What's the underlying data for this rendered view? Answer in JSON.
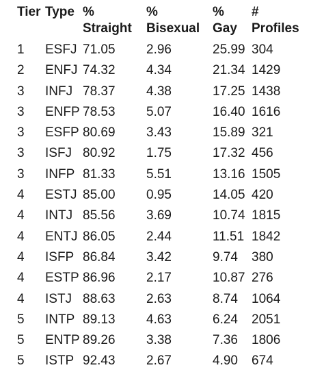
{
  "header": {
    "tier": "Tier",
    "type": "Type",
    "straight_line1": "%",
    "straight_line2": "Straight",
    "bisexual_line1": "%",
    "bisexual_line2": "Bisexual",
    "gay_line1": "%",
    "gay_line2": "Gay",
    "profiles_line1": "#",
    "profiles_line2": "Profiles"
  },
  "rows": [
    {
      "tier": "1",
      "type": "ESFJ",
      "straight": "71.05",
      "bisexual": "2.96",
      "gay": "25.99",
      "profiles": "304"
    },
    {
      "tier": "2",
      "type": "ENFJ",
      "straight": "74.32",
      "bisexual": "4.34",
      "gay": "21.34",
      "profiles": "1429"
    },
    {
      "tier": "3",
      "type": "INFJ",
      "straight": "78.37",
      "bisexual": "4.38",
      "gay": "17.25",
      "profiles": "1438"
    },
    {
      "tier": "3",
      "type": "ENFP",
      "straight": "78.53",
      "bisexual": "5.07",
      "gay": "16.40",
      "profiles": "1616"
    },
    {
      "tier": "3",
      "type": "ESFP",
      "straight": "80.69",
      "bisexual": "3.43",
      "gay": "15.89",
      "profiles": "321"
    },
    {
      "tier": "3",
      "type": "ISFJ",
      "straight": "80.92",
      "bisexual": "1.75",
      "gay": "17.32",
      "profiles": "456"
    },
    {
      "tier": "3",
      "type": "INFP",
      "straight": "81.33",
      "bisexual": "5.51",
      "gay": "13.16",
      "profiles": "1505"
    },
    {
      "tier": "4",
      "type": "ESTJ",
      "straight": "85.00",
      "bisexual": "0.95",
      "gay": "14.05",
      "profiles": "420"
    },
    {
      "tier": "4",
      "type": "INTJ",
      "straight": "85.56",
      "bisexual": "3.69",
      "gay": "10.74",
      "profiles": "1815"
    },
    {
      "tier": "4",
      "type": "ENTJ",
      "straight": "86.05",
      "bisexual": "2.44",
      "gay": "11.51",
      "profiles": "1842"
    },
    {
      "tier": "4",
      "type": "ISFP",
      "straight": "86.84",
      "bisexual": "3.42",
      "gay": "9.74",
      "profiles": "380"
    },
    {
      "tier": "4",
      "type": "ESTP",
      "straight": "86.96",
      "bisexual": "2.17",
      "gay": "10.87",
      "profiles": "276"
    },
    {
      "tier": "4",
      "type": "ISTJ",
      "straight": "88.63",
      "bisexual": "2.63",
      "gay": "8.74",
      "profiles": "1064"
    },
    {
      "tier": "5",
      "type": "INTP",
      "straight": "89.13",
      "bisexual": "4.63",
      "gay": "6.24",
      "profiles": "2051"
    },
    {
      "tier": "5",
      "type": "ENTP",
      "straight": "89.26",
      "bisexual": "3.38",
      "gay": "7.36",
      "profiles": "1806"
    },
    {
      "tier": "5",
      "type": "ISTP",
      "straight": "92.43",
      "bisexual": "2.67",
      "gay": "4.90",
      "profiles": "674"
    }
  ]
}
